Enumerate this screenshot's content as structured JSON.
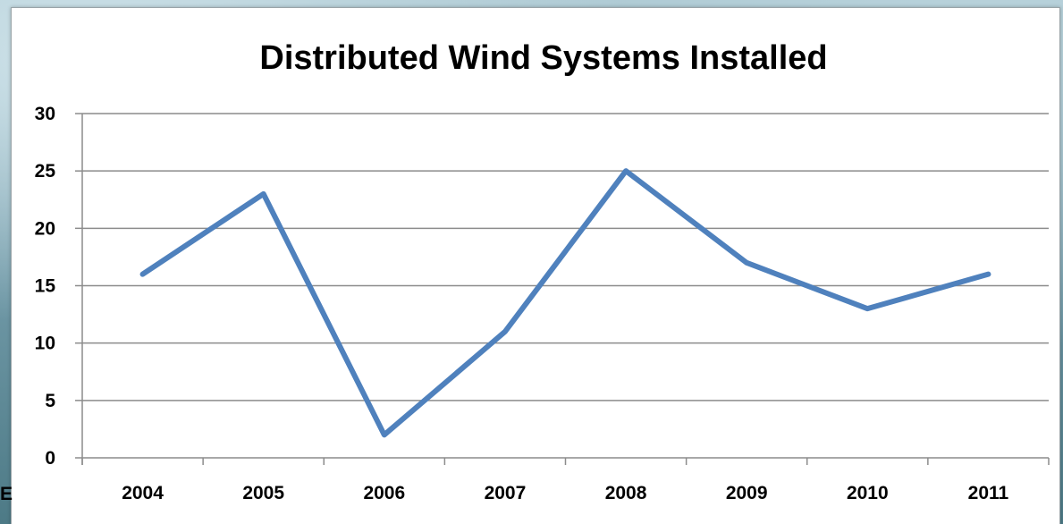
{
  "chart_data": {
    "type": "line",
    "title": "Distributed Wind Systems Installed",
    "xlabel": "",
    "ylabel": "",
    "categories": [
      "2004",
      "2005",
      "2006",
      "2007",
      "2008",
      "2009",
      "2010",
      "2011"
    ],
    "series": [
      {
        "values": [
          16,
          23,
          2,
          11,
          25,
          17,
          13,
          16
        ],
        "color": "#4f81bd"
      }
    ],
    "ylim": [
      0,
      30
    ],
    "yticks": [
      0,
      5,
      10,
      15,
      20,
      25,
      30
    ],
    "grid": true,
    "legend": "none"
  },
  "edge_text": "E",
  "colors": {
    "gridline": "#8c8c8c",
    "axis": "#8c8c8c",
    "line": "#4f81bd"
  }
}
